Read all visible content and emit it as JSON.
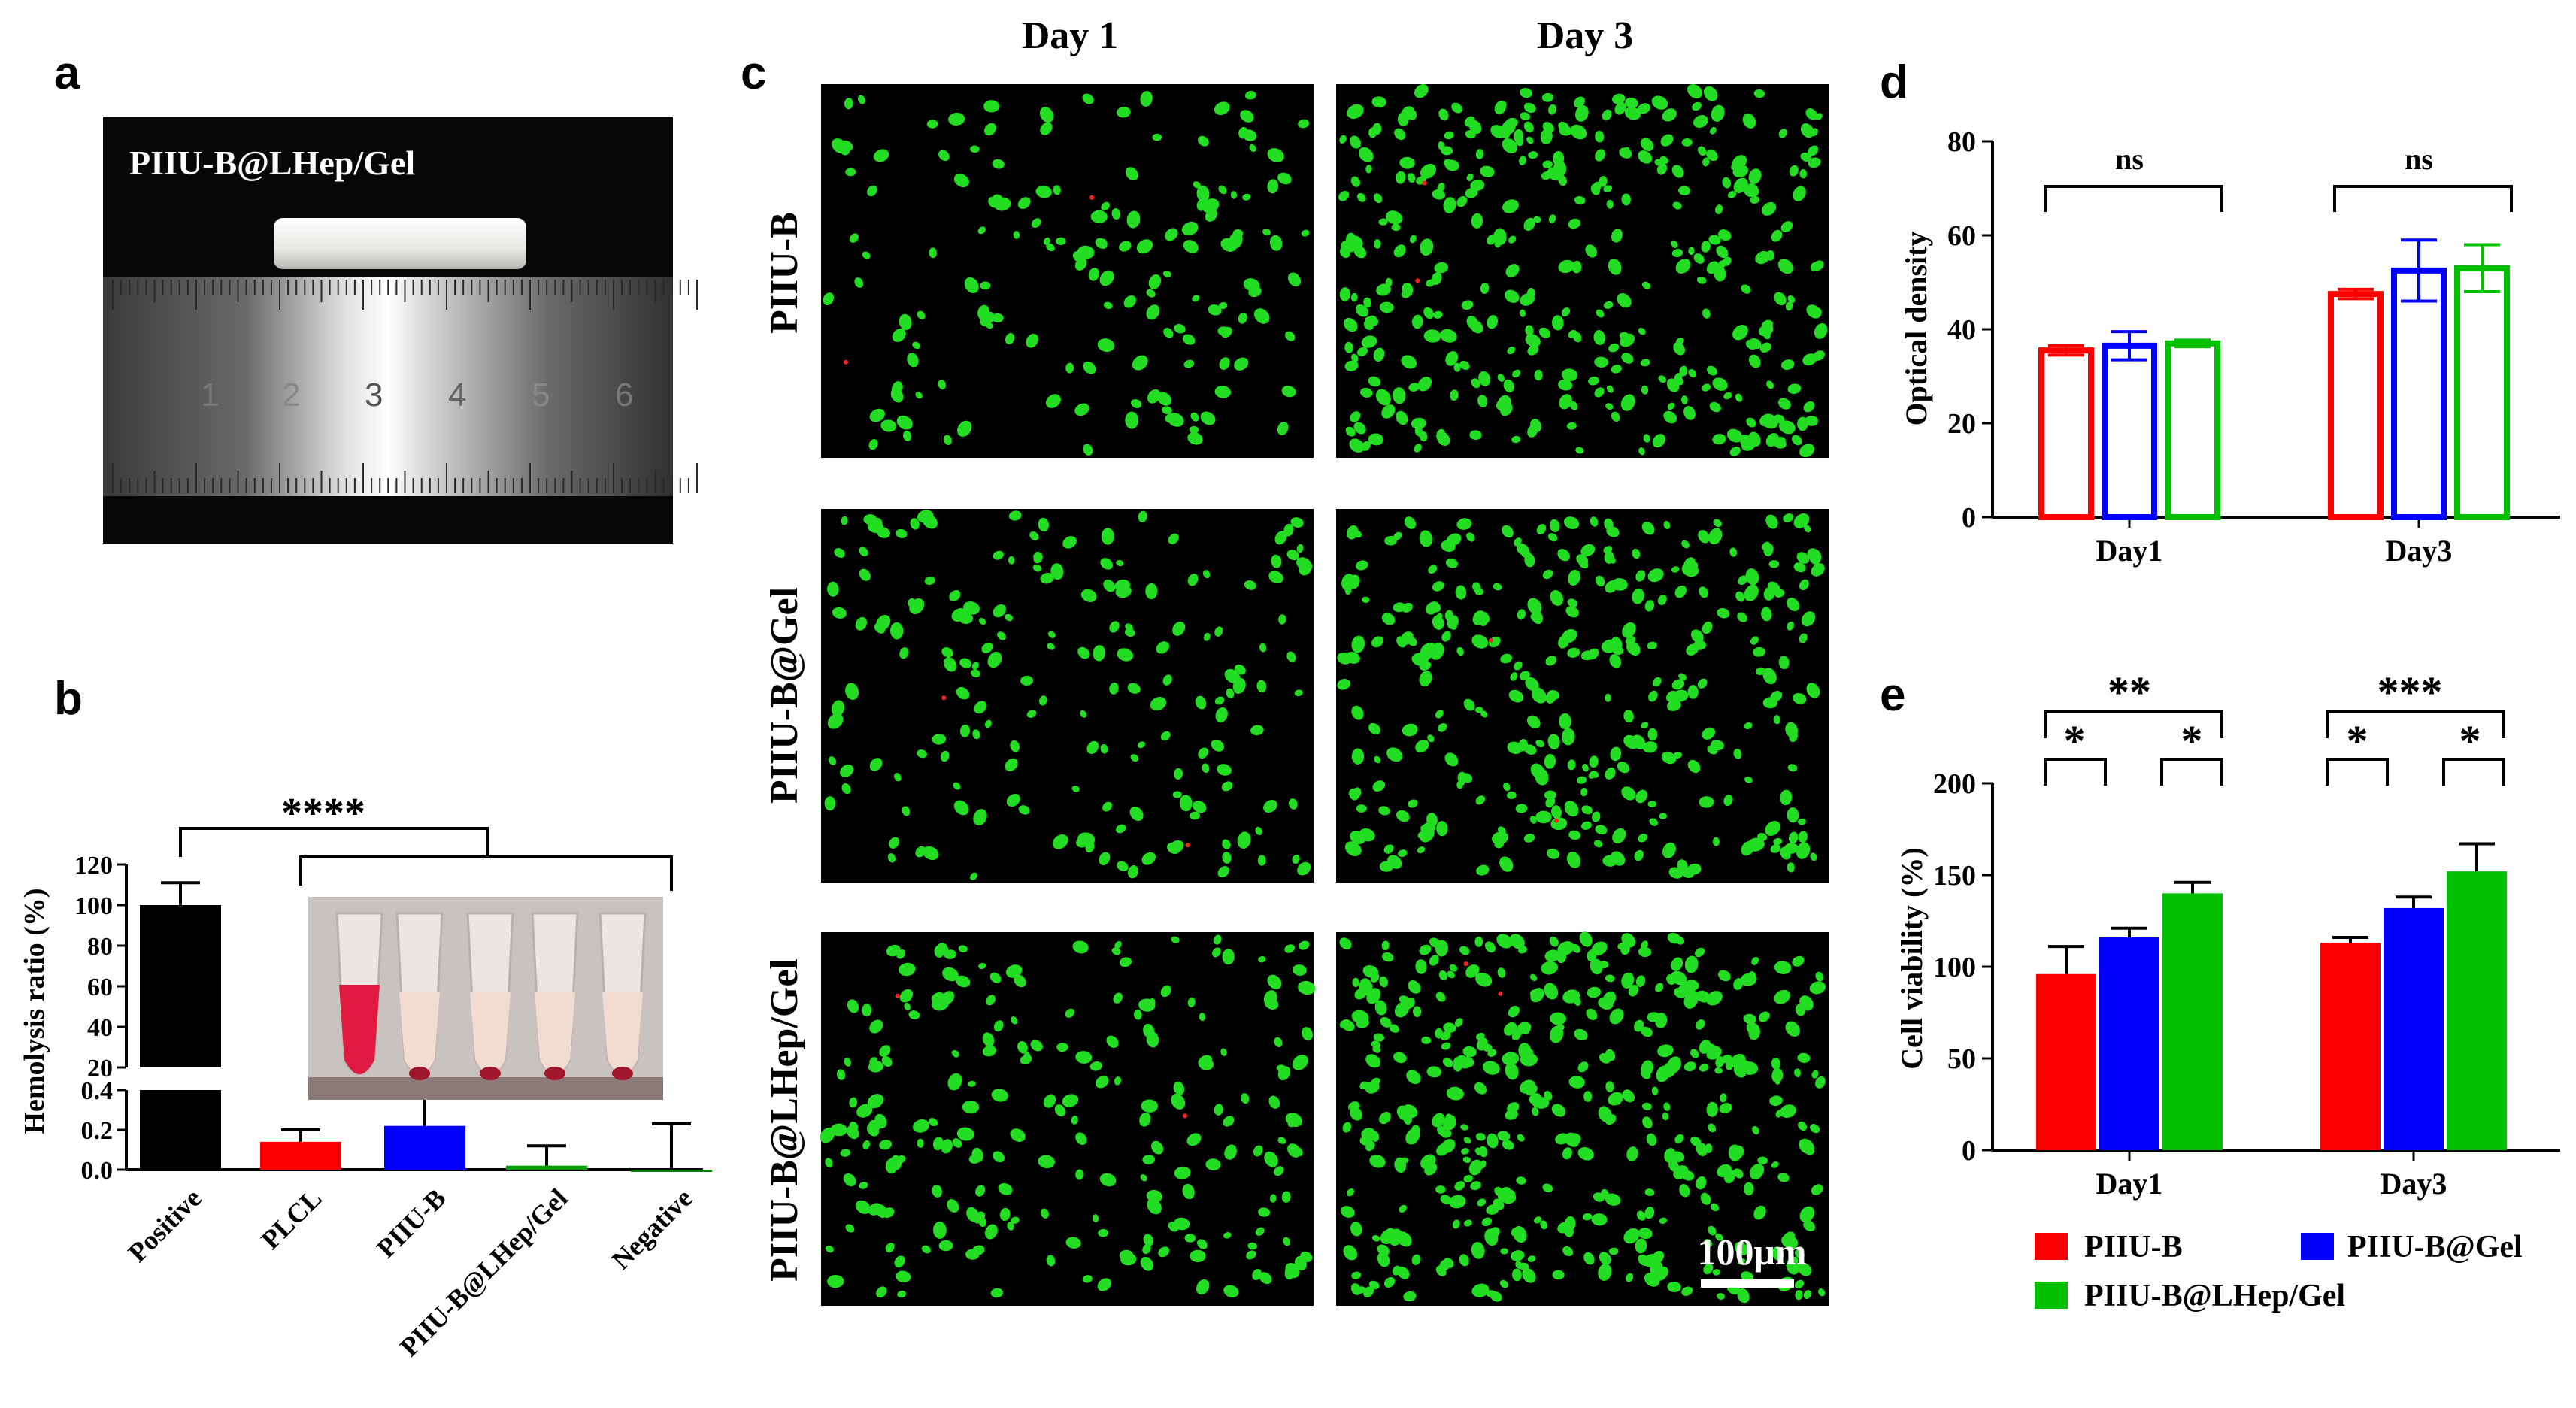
{
  "panels": {
    "a": {
      "letter": "a",
      "photo_label": "PIIU-B@LHep/Gel",
      "ruler_numbers": [
        "1",
        "2",
        "3",
        "4",
        "5",
        "6"
      ]
    },
    "b": {
      "letter": "b",
      "significance": "****"
    },
    "c": {
      "letter": "c",
      "col_headers": [
        "Day 1",
        "Day 3"
      ],
      "row_labels": [
        "PIIU-B",
        "PIIU-B@Gel",
        "PIIU-B@LHep/Gel"
      ],
      "scale_bar": "100μm"
    },
    "d": {
      "letter": "d"
    },
    "e": {
      "letter": "e"
    }
  },
  "colors": {
    "piiu_b": "#ff0000",
    "piiu_b_gel": "#0000ff",
    "piiu_b_lhep_gel": "#00c000",
    "positive": "#000000",
    "negative": "#008000",
    "fluorescence_bg": "#000000",
    "cell": "#22dd22"
  },
  "chart_data": [
    {
      "id": "b",
      "type": "bar",
      "ylabel": "Hemolysis ratio (%)",
      "broken_axis": true,
      "lower_range": [
        0,
        0.4
      ],
      "upper_range": [
        20,
        120
      ],
      "lower_ticks": [
        "0.0",
        "0.2",
        "0.4"
      ],
      "upper_ticks": [
        "20",
        "40",
        "60",
        "80",
        "100",
        "120"
      ],
      "categories": [
        "Positive",
        "PLCL",
        "PIIU-B",
        "PIIU-B@LHep/Gel",
        "Negative"
      ],
      "values": [
        100,
        0.14,
        0.22,
        0.02,
        0.0
      ],
      "errors": [
        11,
        0.06,
        0.15,
        0.1,
        0.23
      ],
      "bar_colors": [
        "#000000",
        "#ff0000",
        "#0000ff",
        "#00a000",
        "#008000"
      ],
      "significance": "****"
    },
    {
      "id": "d",
      "type": "bar",
      "ylabel": "Optical density",
      "ylim": [
        0,
        80
      ],
      "yticks": [
        "0",
        "20",
        "40",
        "60",
        "80"
      ],
      "categories": [
        "Day1",
        "Day3"
      ],
      "series": [
        {
          "values": [
            35.5,
            47.5
          ],
          "errors": [
            1.0,
            1.0
          ]
        },
        {
          "values": [
            36.5,
            52.5
          ],
          "errors": [
            3.0,
            6.5
          ]
        },
        {
          "values": [
            37.0,
            53.0
          ],
          "errors": [
            0.7,
            5.0
          ]
        }
      ],
      "hollow": true,
      "significance": [
        "ns",
        "ns"
      ]
    },
    {
      "id": "e",
      "type": "bar",
      "ylabel": "Cell viability (%)",
      "ylim": [
        0,
        200
      ],
      "yticks": [
        "0",
        "50",
        "100",
        "150",
        "200"
      ],
      "categories": [
        "Day1",
        "Day3"
      ],
      "series": [
        {
          "name": "PIIU-B",
          "values": [
            96,
            113
          ],
          "errors": [
            15,
            3
          ]
        },
        {
          "name": "PIIU-B@Gel",
          "values": [
            116,
            132
          ],
          "errors": [
            5,
            6
          ]
        },
        {
          "name": "PIIU-B@LHep/Gel",
          "values": [
            140,
            152
          ],
          "errors": [
            6,
            15
          ]
        }
      ],
      "significance": {
        "Day1": {
          "outer": "**",
          "left": "*",
          "right": "*"
        },
        "Day3": {
          "outer": "***",
          "left": "*",
          "right": "*"
        }
      },
      "legend": "bottom"
    }
  ]
}
